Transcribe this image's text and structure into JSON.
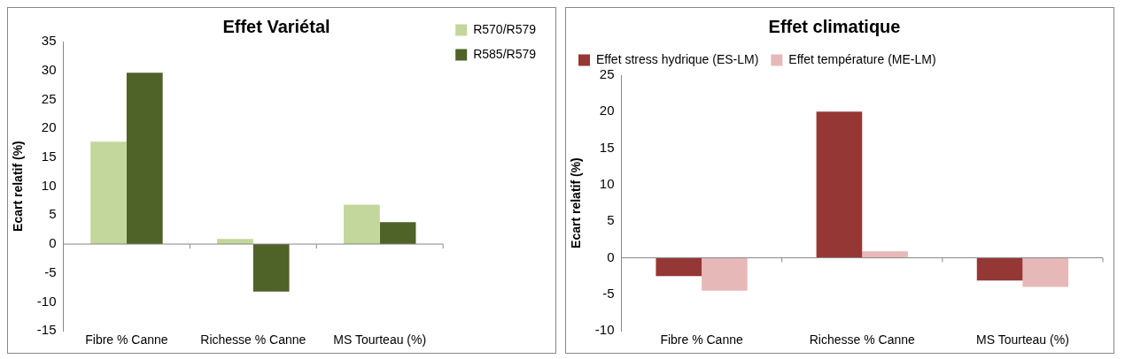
{
  "chart_data": [
    {
      "type": "bar",
      "title": "Effet Variétal",
      "ylabel": "Ecart relatif (%)",
      "categories": [
        "Fibre % Canne",
        "Richesse % Canne",
        "MS Tourteau (%)"
      ],
      "series": [
        {
          "name": "R570/R579",
          "color": "#c3d69b",
          "values": [
            17.7,
            0.9,
            6.8
          ]
        },
        {
          "name": "R585/R579",
          "color": "#4f6228",
          "values": [
            29.6,
            -8.2,
            3.8
          ]
        }
      ],
      "ylim": [
        -15,
        35
      ],
      "yticks": [
        -15,
        -10,
        -5,
        0,
        5,
        10,
        15,
        20,
        25,
        30,
        35
      ],
      "grid": false,
      "legend": "top right",
      "ref_lines": [
        {
          "axis": "y",
          "value": 0,
          "color": "#888888"
        }
      ]
    },
    {
      "type": "bar",
      "title": "Effet climatique",
      "ylabel": "Ecart relatif (%)",
      "categories": [
        "Fibre % Canne",
        "Richesse % Canne",
        "MS Tourteau (%)"
      ],
      "series": [
        {
          "name": "Effet stress hydrique (ES-LM)",
          "color": "#953735",
          "values": [
            -2.5,
            20,
            -3.1
          ]
        },
        {
          "name": "Effet température (ME-LM)",
          "color": "#e6b9b8",
          "values": [
            -4.5,
            0.9,
            -4.0
          ]
        }
      ],
      "ylim": [
        -10,
        25
      ],
      "yticks": [
        -10,
        -5,
        0,
        5,
        10,
        15,
        20,
        25
      ],
      "grid": false,
      "legend": "top",
      "ref_lines": [
        {
          "axis": "y",
          "value": 0,
          "color": "#888888"
        }
      ]
    }
  ]
}
